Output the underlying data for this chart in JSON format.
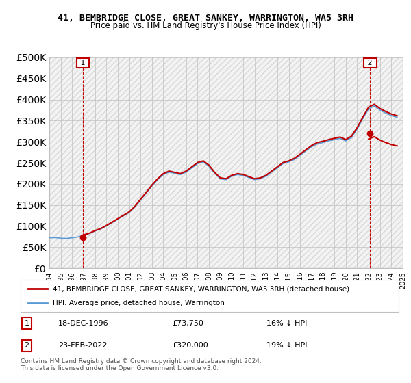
{
  "title": "41, BEMBRIDGE CLOSE, GREAT SANKEY, WARRINGTON, WA5 3RH",
  "subtitle": "Price paid vs. HM Land Registry's House Price Index (HPI)",
  "legend_line1": "41, BEMBRIDGE CLOSE, GREAT SANKEY, WARRINGTON, WA5 3RH (detached house)",
  "legend_line2": "HPI: Average price, detached house, Warrington",
  "note": "Contains HM Land Registry data © Crown copyright and database right 2024.\nThis data is licensed under the Open Government Licence v3.0.",
  "transaction1_label": "1",
  "transaction1_date": "18-DEC-1996",
  "transaction1_price": "£73,750",
  "transaction1_hpi": "16% ↓ HPI",
  "transaction2_label": "2",
  "transaction2_date": "23-FEB-2022",
  "transaction2_price": "£320,000",
  "transaction2_hpi": "19% ↓ HPI",
  "hpi_color": "#5b9bd5",
  "price_color": "#c00000",
  "marker1_color": "#c00000",
  "marker2_color": "#c00000",
  "ylim": [
    0,
    500000
  ],
  "yticks": [
    0,
    50000,
    100000,
    150000,
    200000,
    250000,
    300000,
    350000,
    400000,
    450000,
    500000
  ],
  "background_color": "#ffffff",
  "plot_bg_color": "#ffffff",
  "grid_color": "#c0c0c0",
  "hatch_color": "#d0d0d0",
  "transaction1_x": 1996.96,
  "transaction1_y": 73750,
  "transaction2_x": 2022.14,
  "transaction2_y": 320000,
  "xmin": 1994,
  "xmax": 2025
}
